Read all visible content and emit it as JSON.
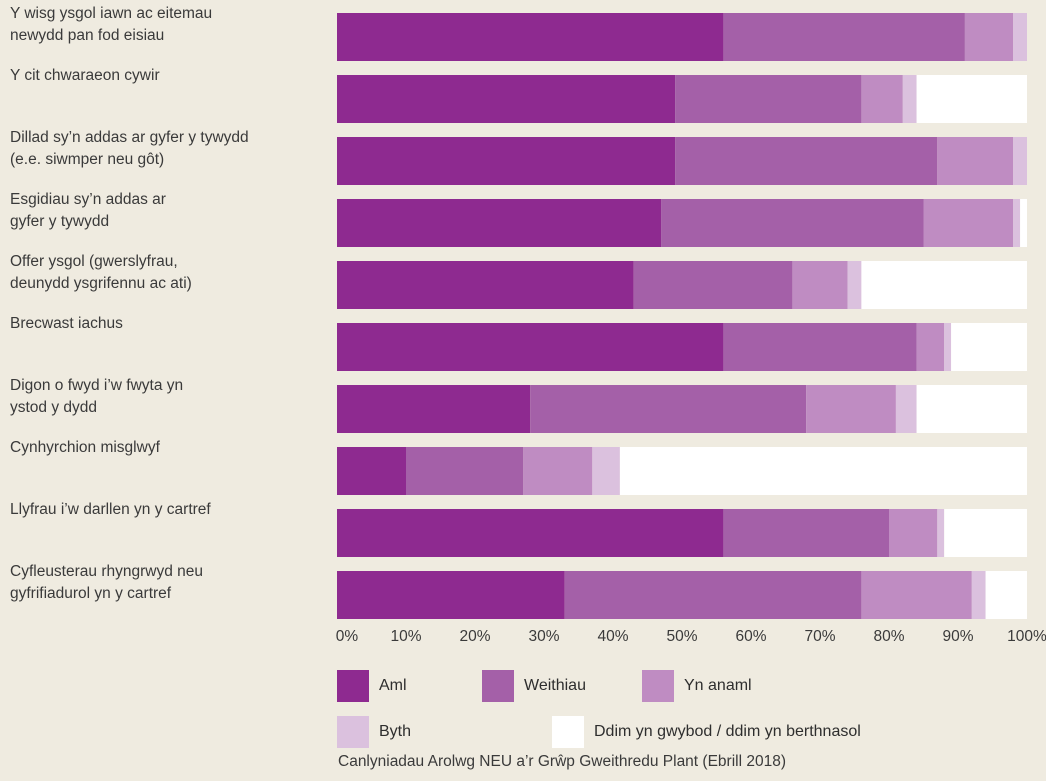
{
  "chart_data": {
    "type": "bar",
    "orientation": "horizontal",
    "stacked": true,
    "categories": [
      "Y wisg ysgol iawn ac eitemau\nnewydd pan fod eisiau",
      "Y cit chwaraeon cywir",
      "Dillad sy’n addas ar gyfer y tywydd\n(e.e. siwmper neu gôt)",
      "Esgidiau sy’n addas ar\ngyfer y tywydd",
      "Offer ysgol (gwerslyfrau,\ndeunydd ysgrifennu ac ati)",
      "Brecwast iachus",
      "Digon o fwyd i’w fwyta yn\nystod y dydd",
      "Cynhyrchion misglwyf",
      "Llyfrau i’w darllen yn y cartref",
      "Cyfleusterau rhyngrwyd neu\ngyfrifiadurol yn y cartref"
    ],
    "series": [
      {
        "name": "Aml",
        "color": "#8e2a90",
        "values": [
          56,
          49,
          49,
          47,
          43,
          56,
          28,
          10,
          56,
          33
        ]
      },
      {
        "name": "Weithiau",
        "color": "#a460a8",
        "values": [
          35,
          27,
          38,
          38,
          23,
          28,
          40,
          17,
          24,
          43
        ]
      },
      {
        "name": "Yn anaml",
        "color": "#bf8cc2",
        "values": [
          7,
          6,
          11,
          13,
          8,
          4,
          13,
          10,
          7,
          16
        ]
      },
      {
        "name": "Byth",
        "color": "#dbc1de",
        "values": [
          2,
          2,
          2,
          1,
          2,
          1,
          3,
          4,
          1,
          2
        ]
      },
      {
        "name": "Ddim yn gwybod / ddim yn berthnasol",
        "color": "#ffffff",
        "values": [
          0,
          16,
          0,
          1,
          24,
          11,
          16,
          59,
          12,
          6
        ]
      }
    ],
    "xlim": [
      0,
      100
    ],
    "xticks": [
      "0%",
      "10%",
      "20%",
      "30%",
      "40%",
      "50%",
      "60%",
      "70%",
      "80%",
      "90%",
      "100%"
    ],
    "legend_position": "bottom",
    "source": "Canlyniadau Arolwg NEU a’r Grŵp Gweithredu Plant (Ebrill 2018)"
  }
}
